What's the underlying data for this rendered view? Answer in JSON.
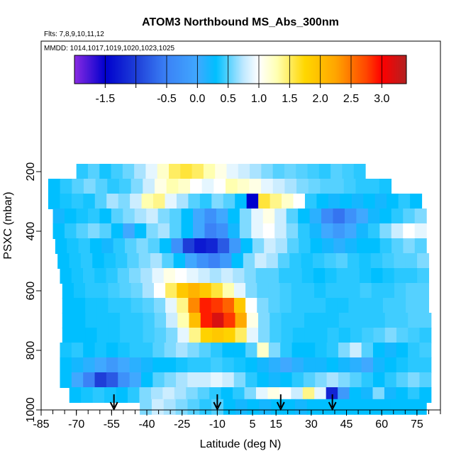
{
  "chart_data": {
    "type": "heatmap",
    "title": "ATOM3 Northbound MS_Abs_300nm",
    "subtitle_lines": [
      "Flts: 7,8,9,10,11,12",
      "MMDD: 1014,1017,1019,1020,1023,1025"
    ],
    "xlabel": "Latitude (deg N)",
    "ylabel": "PSXC (mbar)",
    "xlim": [
      -85,
      85
    ],
    "ylim": [
      1000,
      0
    ],
    "x_ticks": [
      -85,
      -70,
      -55,
      -40,
      -25,
      -10,
      5,
      15,
      30,
      45,
      60,
      75
    ],
    "y_ticks": [
      200,
      400,
      600,
      800,
      1000
    ],
    "colorbar": {
      "range": [
        -2.0,
        3.4
      ],
      "tick_labels": [
        "-1.5",
        "-0.5",
        "0.0",
        "0.5",
        "1.0",
        "1.5",
        "2.0",
        "2.5",
        "3.0"
      ],
      "tick_values": [
        -1.5,
        -0.5,
        0.0,
        0.5,
        1.0,
        1.5,
        2.0,
        2.5,
        3.0
      ],
      "colors": [
        "#8a2be2",
        "#0000cd",
        "#1e3ed8",
        "#3b82f6",
        "#40a8ff",
        "#00bfff",
        "#bfe8ff",
        "#ffffff",
        "#ffffb0",
        "#ffd700",
        "#ffa500",
        "#ff4500",
        "#ff0000",
        "#b22222"
      ],
      "color_stops": [
        -2.0,
        -1.5,
        -1.0,
        -0.5,
        0.0,
        0.3,
        0.75,
        1.0,
        1.3,
        1.75,
        2.25,
        2.75,
        3.0,
        3.4
      ]
    },
    "flight_markers_lat": [
      -54,
      -10,
      17,
      39
    ],
    "rows": [
      {
        "p": 200,
        "x0": -70,
        "x1": 53,
        "cells": [
          0.4,
          0.5,
          0.35,
          0.45,
          0.55,
          0.7,
          0.9,
          1.2,
          1.5,
          1.6,
          1.5,
          1.3,
          1.1,
          0.9,
          0.8,
          0.7,
          0.6,
          0.5,
          0.55,
          0.5,
          0.45,
          0.4,
          0.5,
          0.45,
          0.4
        ]
      },
      {
        "p": 250,
        "x0": -82,
        "x1": 64,
        "cells": [
          0.3,
          0.4,
          0.5,
          0.6,
          0.5,
          0.4,
          0.45,
          0.6,
          0.8,
          1.1,
          1.3,
          1.2,
          1.0,
          0.9,
          1.0,
          1.3,
          1.2,
          1.1,
          0.9,
          0.8,
          0.7,
          0.6,
          0.55,
          0.5,
          0.5,
          0.45,
          0.4,
          0.4,
          0.35
        ]
      },
      {
        "p": 300,
        "x0": -82,
        "x1": 77,
        "cells": [
          0.3,
          0.35,
          0.4,
          0.35,
          0.5,
          0.7,
          0.6,
          0.8,
          1.3,
          1.4,
          0.9,
          0.7,
          0.5,
          0.4,
          0.6,
          0.5,
          0.3,
          -1.5,
          1.6,
          1.4,
          1.2,
          1.0,
          0.4,
          0.3,
          0.2,
          0.3,
          0.2,
          0.3,
          0.2,
          0.3,
          0.4,
          0.3
        ]
      },
      {
        "p": 350,
        "x0": -80,
        "x1": 79,
        "cells": [
          0.2,
          0.3,
          0.35,
          0.4,
          0.3,
          0.5,
          0.6,
          0.7,
          0.8,
          0.6,
          0.5,
          0.3,
          0.0,
          -0.3,
          0.0,
          0.3,
          0.6,
          0.9,
          1.1,
          0.8,
          0.5,
          0.3,
          0.1,
          -0.4,
          -0.6,
          -0.3,
          0.0,
          0.2,
          0.3,
          0.4,
          0.5,
          0.6
        ]
      },
      {
        "p": 400,
        "x0": -80,
        "x1": 79,
        "cells": [
          0.3,
          0.4,
          0.5,
          0.6,
          0.5,
          0.3,
          0.0,
          0.3,
          0.6,
          0.7,
          0.5,
          0.3,
          0.0,
          -0.5,
          -0.3,
          0.2,
          0.6,
          0.9,
          1.0,
          0.8,
          0.6,
          0.4,
          0.2,
          0.0,
          -0.2,
          0.0,
          0.2,
          0.4,
          0.6,
          0.8,
          1.0,
          0.9
        ]
      },
      {
        "p": 450,
        "x0": -79,
        "x1": 79,
        "cells": [
          0.3,
          0.35,
          0.4,
          0.3,
          0.2,
          0.4,
          0.5,
          0.6,
          0.5,
          0.3,
          -0.3,
          -1.0,
          -1.3,
          -1.2,
          -0.8,
          -0.2,
          0.3,
          0.6,
          0.8,
          0.7,
          0.5,
          0.4,
          0.3,
          0.2,
          0.1,
          0.2,
          0.3,
          0.3,
          0.4,
          0.5,
          0.6,
          0.5
        ]
      },
      {
        "p": 500,
        "x0": -78,
        "x1": 80,
        "cells": [
          0.3,
          0.35,
          0.4,
          0.3,
          0.35,
          0.4,
          0.5,
          0.6,
          0.7,
          0.5,
          0.3,
          0.0,
          -0.3,
          -0.5,
          -0.2,
          0.3,
          0.6,
          0.8,
          0.7,
          0.5,
          0.4,
          0.35,
          0.4,
          0.45,
          0.5,
          0.4,
          0.35,
          0.4,
          0.45,
          0.5,
          0.5,
          0.6
        ]
      },
      {
        "p": 550,
        "x0": -77,
        "x1": 80,
        "cells": [
          0.3,
          0.35,
          0.4,
          0.35,
          0.4,
          0.5,
          0.6,
          0.7,
          0.9,
          1.1,
          1.0,
          0.9,
          0.8,
          0.7,
          0.8,
          0.7,
          0.6,
          0.5,
          0.5,
          0.4,
          0.4,
          0.35,
          0.3,
          0.35,
          0.4,
          0.4,
          0.35,
          0.3,
          0.35,
          0.4,
          0.4,
          0.45
        ]
      },
      {
        "p": 600,
        "x0": -76,
        "x1": 80,
        "cells": [
          0.3,
          0.35,
          0.4,
          0.4,
          0.45,
          0.5,
          0.55,
          0.7,
          1.0,
          1.5,
          1.9,
          2.1,
          1.9,
          1.6,
          1.3,
          0.9,
          0.6,
          0.5,
          0.5,
          0.45,
          0.4,
          0.4,
          0.35,
          0.4,
          0.4,
          0.4,
          0.45,
          0.4,
          0.4,
          0.45,
          0.5,
          0.5
        ]
      },
      {
        "p": 650,
        "x0": -76,
        "x1": 80,
        "cells": [
          0.3,
          0.3,
          0.35,
          0.35,
          0.4,
          0.4,
          0.45,
          0.5,
          0.6,
          0.9,
          1.4,
          2.4,
          2.9,
          2.8,
          2.6,
          1.9,
          1.0,
          0.6,
          0.5,
          0.45,
          0.4,
          0.4,
          0.4,
          0.35,
          0.35,
          0.4,
          0.4,
          0.4,
          0.45,
          0.45,
          0.5,
          0.5
        ]
      },
      {
        "p": 700,
        "x0": -76,
        "x1": 81,
        "cells": [
          0.3,
          0.3,
          0.35,
          0.35,
          0.35,
          0.4,
          0.4,
          0.45,
          0.55,
          0.8,
          1.3,
          2.0,
          2.9,
          3.2,
          2.8,
          2.2,
          1.1,
          0.6,
          0.45,
          0.4,
          0.4,
          0.35,
          0.35,
          0.35,
          0.4,
          0.4,
          0.4,
          0.4,
          0.45,
          0.45,
          0.5,
          0.5
        ]
      },
      {
        "p": 750,
        "x0": -76,
        "x1": 81,
        "cells": [
          0.3,
          0.3,
          0.3,
          0.35,
          0.35,
          0.4,
          0.4,
          0.45,
          0.5,
          0.6,
          0.9,
          1.4,
          1.8,
          1.9,
          1.8,
          1.5,
          0.9,
          0.6,
          0.45,
          0.4,
          0.35,
          0.35,
          0.35,
          0.4,
          0.35,
          0.4,
          0.45,
          0.5,
          0.6,
          0.5,
          0.45,
          0.4
        ]
      },
      {
        "p": 800,
        "x0": -77,
        "x1": 81,
        "cells": [
          0.35,
          0.4,
          0.3,
          0.35,
          0.3,
          0.35,
          0.4,
          0.4,
          0.5,
          0.6,
          0.7,
          0.6,
          0.5,
          0.4,
          0.3,
          0.3,
          0.5,
          1.2,
          0.6,
          0.4,
          0.3,
          0.3,
          0.35,
          0.4,
          0.6,
          0.8,
          0.5,
          0.3,
          0.2,
          0.3,
          0.4,
          0.45
        ]
      },
      {
        "p": 850,
        "x0": -77,
        "x1": 81,
        "cells": [
          0.3,
          0.2,
          0.1,
          0.0,
          -0.2,
          0.0,
          0.1,
          0.2,
          0.3,
          0.3,
          0.35,
          0.4,
          0.4,
          0.45,
          0.4,
          0.35,
          0.3,
          0.2,
          0.1,
          0.0,
          0.1,
          0.2,
          0.2,
          0.3,
          0.2,
          0.1,
          0.0,
          0.2,
          0.3,
          0.35,
          0.4,
          0.4
        ]
      },
      {
        "p": 900,
        "x0": -77,
        "x1": 81,
        "cells": [
          0.3,
          0.0,
          -0.5,
          -1.0,
          -0.8,
          -0.3,
          0.0,
          0.3,
          0.5,
          0.6,
          0.7,
          0.8,
          0.8,
          0.9,
          0.8,
          0.6,
          0.4,
          0.3,
          0.2,
          0.3,
          0.4,
          0.5,
          0.6,
          0.7,
          0.6,
          0.5,
          0.4,
          0.3,
          0.4,
          0.5,
          0.6,
          0.5
        ]
      },
      {
        "p": 950,
        "x0": -73,
        "x1": 81,
        "cells": [
          0.3,
          0.35,
          0.4,
          0.35,
          0.3,
          0.4,
          0.6,
          0.7,
          0.8,
          0.7,
          0.6,
          0.5,
          0.4,
          0.3,
          0.4,
          0.6,
          0.9,
          1.1,
          1.0,
          0.8,
          1.4,
          0.9,
          -1.2,
          -0.2,
          0.3,
          0.2,
          0.6,
          0.2,
          0.3,
          0.4,
          0.3
        ]
      },
      {
        "p": 990,
        "x0": -43,
        "x1": 79,
        "cells": [
          0.6,
          0.8,
          0.7,
          0.6,
          0.5,
          0.4,
          0.5,
          0.3,
          0.2,
          0.3,
          0.2,
          0.3,
          0.3,
          0.2,
          0.3,
          0.3,
          0.3,
          0.3,
          0.3,
          0.3,
          0.3,
          0.3,
          0.3,
          0.3
        ]
      }
    ]
  }
}
